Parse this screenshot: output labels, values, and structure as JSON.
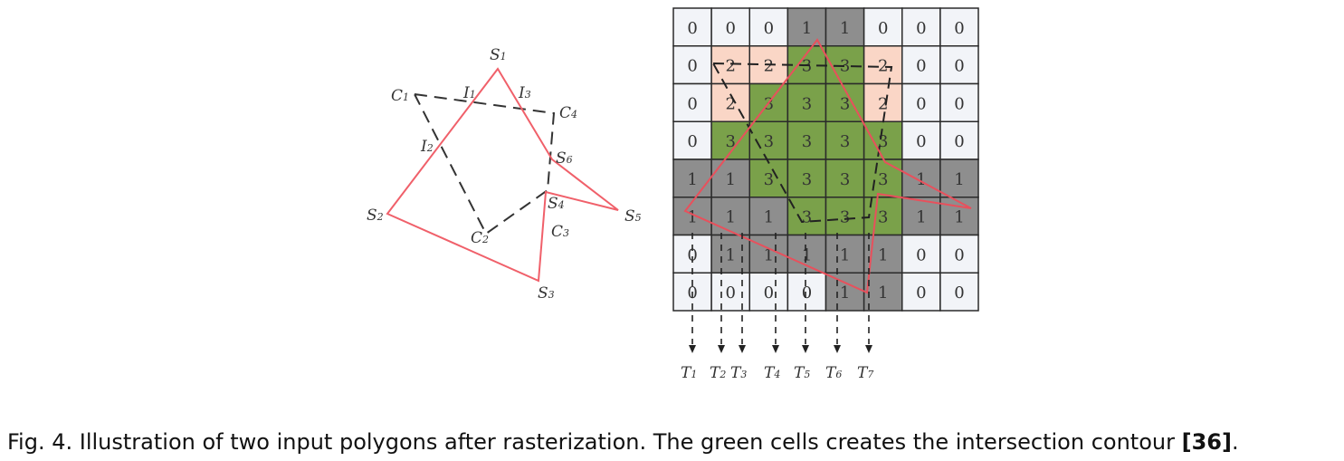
{
  "left_diagram": {
    "subject_polygon": {
      "color": "#f0606a",
      "vertices": [
        "S1",
        "S2",
        "S3",
        "S4",
        "S5",
        "S6"
      ]
    },
    "clip_polygon": {
      "vertices": [
        "C1",
        "C2",
        "C3",
        "C4"
      ]
    },
    "intersection_labels": [
      "I1",
      "I2",
      "I3"
    ]
  },
  "grid": {
    "rows": [
      [
        0,
        0,
        0,
        1,
        1,
        0,
        0,
        0
      ],
      [
        0,
        2,
        2,
        3,
        3,
        2,
        0,
        0
      ],
      [
        0,
        2,
        3,
        3,
        3,
        2,
        0,
        0
      ],
      [
        0,
        3,
        3,
        3,
        3,
        3,
        0,
        0
      ],
      [
        1,
        1,
        3,
        3,
        3,
        3,
        1,
        1
      ],
      [
        1,
        1,
        1,
        3,
        3,
        3,
        1,
        1
      ],
      [
        0,
        1,
        1,
        1,
        1,
        1,
        0,
        0
      ],
      [
        0,
        0,
        0,
        0,
        1,
        1,
        0,
        0
      ]
    ],
    "colors": {
      "0": "#f2f4f8",
      "1": "#8e8e8e",
      "2": "#fad6c6",
      "3": "#7aa14a"
    },
    "tracks": [
      "T1",
      "T2",
      "T3",
      "T4",
      "T5",
      "T6",
      "T7"
    ]
  },
  "caption": {
    "prefix": "Fig. 4.",
    "text": "Illustration of two input polygons after rasterization. The green cells creates the intersection contour",
    "ref": "[36]",
    "suffix": "."
  }
}
